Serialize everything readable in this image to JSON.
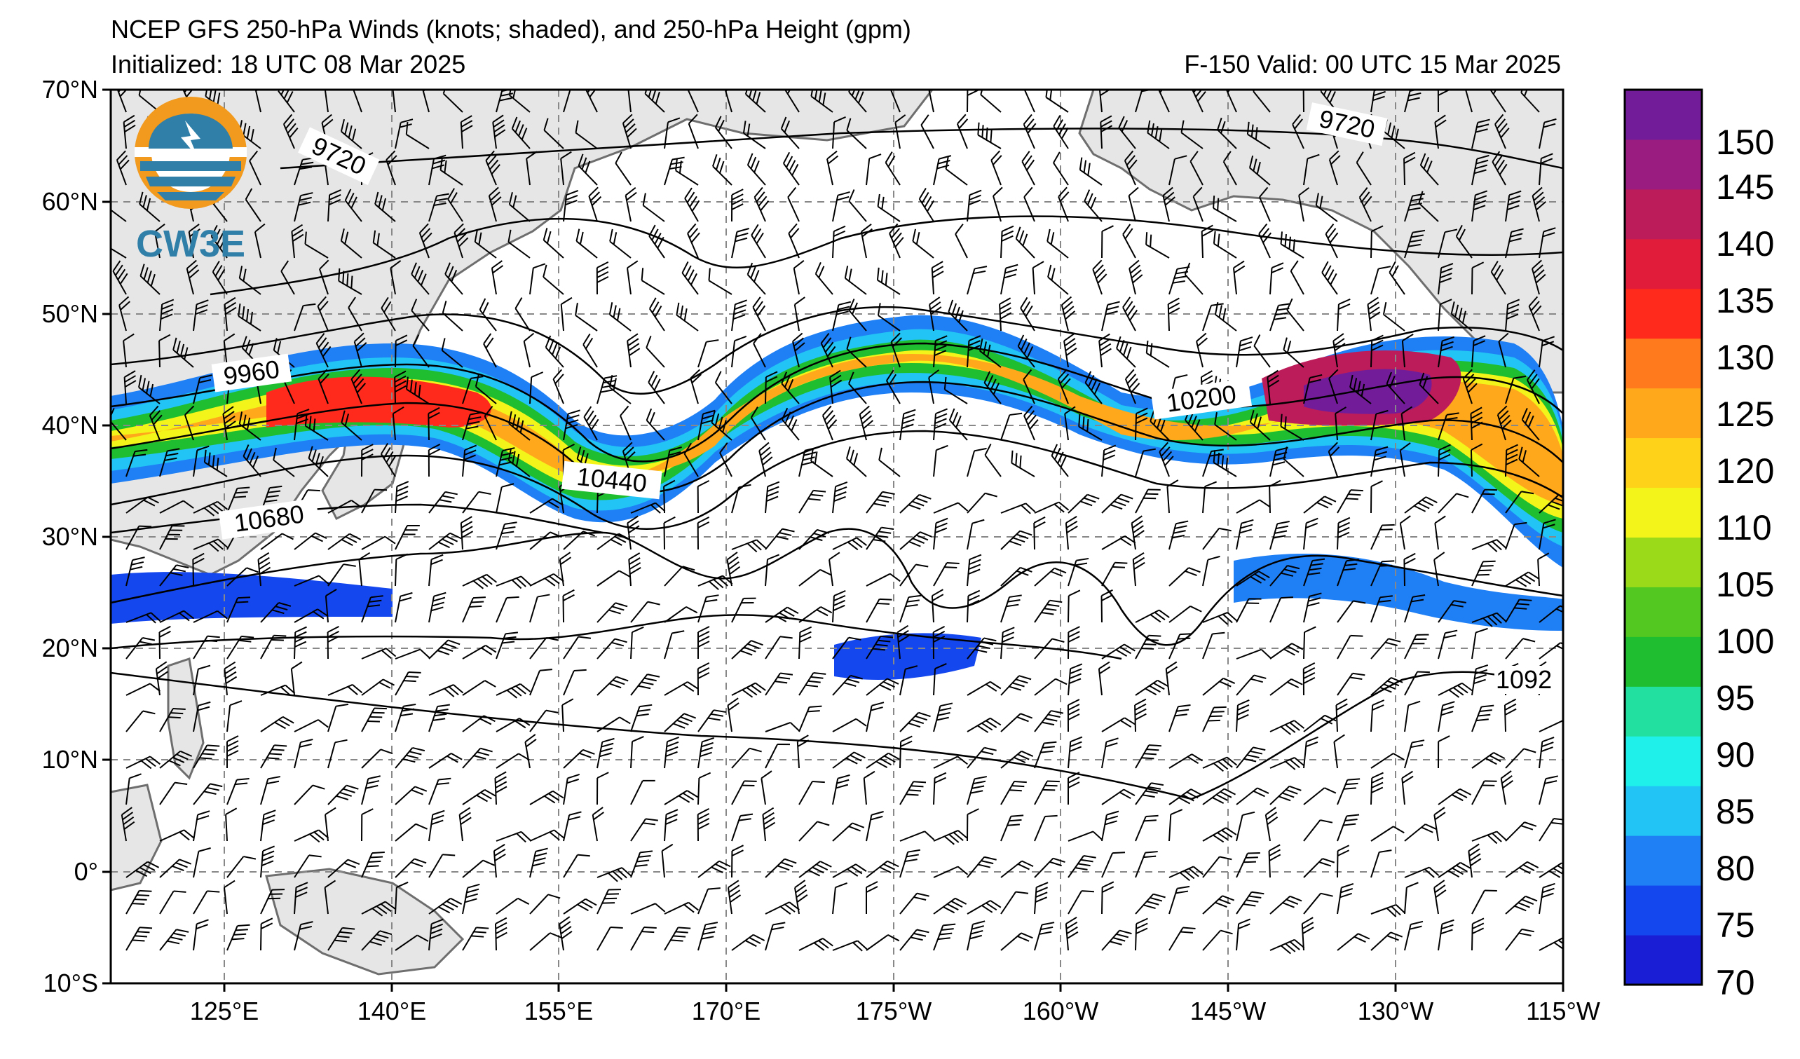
{
  "header": {
    "title": "NCEP GFS 250-hPa Winds (knots; shaded), and 250-hPa Height (gpm)",
    "initialized": "Initialized: 18 UTC 08 Mar 2025",
    "valid": "F-150  Valid: 00 UTC 15 Mar 2025"
  },
  "map": {
    "lat_labels": [
      "70°N",
      "60°N",
      "50°N",
      "40°N",
      "30°N",
      "20°N",
      "10°N",
      "0°",
      "10°S"
    ],
    "lon_labels": [
      "125°E",
      "140°E",
      "155°E",
      "170°E",
      "175°W",
      "160°W",
      "145°W",
      "130°W",
      "115°W"
    ],
    "lat_range": [
      -10,
      70
    ],
    "lon_range_east": [
      110,
      245
    ],
    "height_labels": [
      "9720",
      "9720",
      "9960",
      "10200",
      "10440",
      "10680",
      "1092"
    ],
    "colors": {
      "land": "#e6e6e6",
      "coast": "#666666",
      "grid": "#888888"
    }
  },
  "colorbar": {
    "ticks": [
      "70",
      "75",
      "80",
      "85",
      "90",
      "95",
      "100",
      "105",
      "110",
      "120",
      "125",
      "130",
      "135",
      "140",
      "145",
      "150"
    ],
    "colors": [
      "#1a1fd6",
      "#1547ee",
      "#1f7ff5",
      "#22c3f5",
      "#20f0ea",
      "#22e0a0",
      "#1fbe30",
      "#52c820",
      "#9ada18",
      "#f3f51a",
      "#ffd21a",
      "#ffa81c",
      "#ff7a1c",
      "#ff2a1c",
      "#e01c3a",
      "#bc1c5a",
      "#9a1c80",
      "#721c9a"
    ]
  },
  "logo": {
    "text": "CW3E",
    "icon": "cw3e-logo-icon"
  }
}
